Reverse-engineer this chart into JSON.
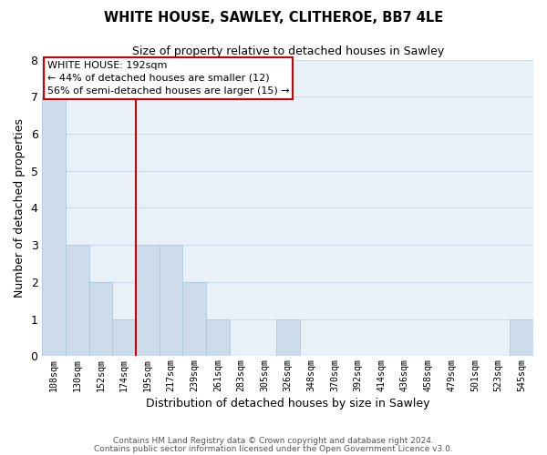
{
  "title": "WHITE HOUSE, SAWLEY, CLITHEROE, BB7 4LE",
  "subtitle": "Size of property relative to detached houses in Sawley",
  "xlabel": "Distribution of detached houses by size in Sawley",
  "ylabel": "Number of detached properties",
  "bar_labels": [
    "108sqm",
    "130sqm",
    "152sqm",
    "174sqm",
    "195sqm",
    "217sqm",
    "239sqm",
    "261sqm",
    "283sqm",
    "305sqm",
    "326sqm",
    "348sqm",
    "370sqm",
    "392sqm",
    "414sqm",
    "436sqm",
    "458sqm",
    "479sqm",
    "501sqm",
    "523sqm",
    "545sqm"
  ],
  "bar_heights": [
    7,
    3,
    2,
    1,
    3,
    3,
    2,
    1,
    0,
    0,
    1,
    0,
    0,
    0,
    0,
    0,
    0,
    0,
    0,
    0,
    1
  ],
  "bar_color": "#cddceb",
  "bar_edge_color": "#aec8dd",
  "marker_index": 4,
  "marker_color": "#cc0000",
  "ylim": [
    0,
    8
  ],
  "yticks": [
    0,
    1,
    2,
    3,
    4,
    5,
    6,
    7,
    8
  ],
  "annotation_line1": "WHITE HOUSE: 192sqm",
  "annotation_line2": "← 44% of detached houses are smaller (12)",
  "annotation_line3": "56% of semi-detached houses are larger (15) →",
  "footer_line1": "Contains HM Land Registry data © Crown copyright and database right 2024.",
  "footer_line2": "Contains public sector information licensed under the Open Government Licence v3.0.",
  "grid_color": "#d0dce8",
  "background_color": "#ffffff",
  "plot_bg_color": "#e8f0f8"
}
